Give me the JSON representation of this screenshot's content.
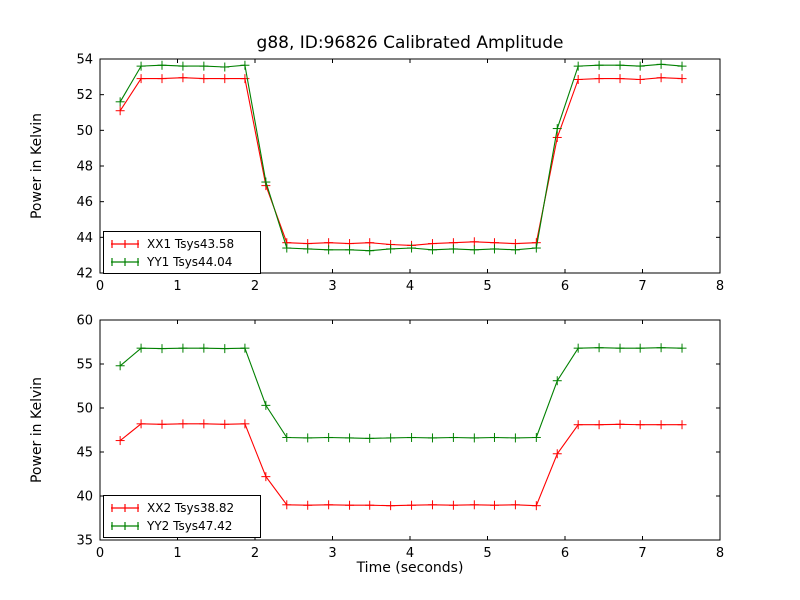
{
  "figure": {
    "title": "g88, ID:96826 Calibrated Amplitude",
    "background_color": "#ffffff",
    "frame_color": "#000000"
  },
  "chart_data": [
    {
      "type": "line",
      "title": "g88, ID:96826 Calibrated Amplitude",
      "xlabel": "",
      "ylabel": "Power in Kelvin",
      "xlim": [
        0,
        8
      ],
      "ylim": [
        42,
        54
      ],
      "xticks": [
        0,
        1,
        2,
        3,
        4,
        5,
        6,
        7,
        8
      ],
      "yticks": [
        42,
        44,
        46,
        48,
        50,
        52,
        54
      ],
      "grid": false,
      "legend_position": "lower left",
      "marker": "plus",
      "x": [
        0.26,
        0.53,
        0.8,
        1.07,
        1.34,
        1.61,
        1.87,
        2.14,
        2.41,
        2.68,
        2.95,
        3.22,
        3.48,
        3.75,
        4.02,
        4.29,
        4.56,
        4.83,
        5.09,
        5.36,
        5.63,
        5.9,
        6.17,
        6.44,
        6.71,
        6.97,
        7.24,
        7.51
      ],
      "series": [
        {
          "name": "XX1",
          "label": "XX1 Tsys43.58",
          "color": "#ff0000",
          "values": [
            51.1,
            52.9,
            52.9,
            52.95,
            52.9,
            52.9,
            52.9,
            46.9,
            43.7,
            43.65,
            43.7,
            43.65,
            43.7,
            43.6,
            43.55,
            43.65,
            43.7,
            43.75,
            43.7,
            43.65,
            43.7,
            49.6,
            52.85,
            52.9,
            52.9,
            52.85,
            52.95,
            52.9
          ]
        },
        {
          "name": "YY1",
          "label": "YY1 Tsys44.04",
          "color": "#008000",
          "values": [
            51.6,
            53.6,
            53.65,
            53.6,
            53.6,
            53.55,
            53.65,
            47.1,
            43.4,
            43.35,
            43.3,
            43.3,
            43.25,
            43.35,
            43.4,
            43.3,
            43.35,
            43.3,
            43.35,
            43.3,
            43.4,
            50.1,
            53.6,
            53.65,
            53.65,
            53.6,
            53.7,
            53.6
          ]
        }
      ]
    },
    {
      "type": "line",
      "title": "",
      "xlabel": "Time (seconds)",
      "ylabel": "Power in Kelvin",
      "xlim": [
        0,
        8
      ],
      "ylim": [
        35,
        60
      ],
      "xticks": [
        0,
        1,
        2,
        3,
        4,
        5,
        6,
        7,
        8
      ],
      "yticks": [
        35,
        40,
        45,
        50,
        55,
        60
      ],
      "grid": false,
      "legend_position": "lower left",
      "marker": "plus",
      "x": [
        0.26,
        0.53,
        0.8,
        1.07,
        1.34,
        1.61,
        1.87,
        2.14,
        2.41,
        2.68,
        2.95,
        3.22,
        3.48,
        3.75,
        4.02,
        4.29,
        4.56,
        4.83,
        5.09,
        5.36,
        5.63,
        5.9,
        6.17,
        6.44,
        6.71,
        6.97,
        7.24,
        7.51
      ],
      "series": [
        {
          "name": "XX2",
          "label": "XX2 Tsys38.82",
          "color": "#ff0000",
          "values": [
            46.3,
            48.2,
            48.15,
            48.2,
            48.2,
            48.15,
            48.2,
            42.2,
            39.0,
            38.95,
            39.0,
            38.95,
            38.95,
            38.9,
            38.95,
            39.0,
            38.95,
            39.0,
            38.95,
            39.0,
            38.9,
            44.8,
            48.1,
            48.1,
            48.15,
            48.1,
            48.1,
            48.1
          ]
        },
        {
          "name": "YY2",
          "label": "YY2 Tsys47.42",
          "color": "#008000",
          "values": [
            54.8,
            56.8,
            56.75,
            56.8,
            56.8,
            56.75,
            56.8,
            50.3,
            46.65,
            46.6,
            46.65,
            46.6,
            46.55,
            46.6,
            46.65,
            46.6,
            46.65,
            46.6,
            46.65,
            46.6,
            46.65,
            53.1,
            56.8,
            56.85,
            56.8,
            56.8,
            56.85,
            56.8
          ]
        }
      ]
    }
  ]
}
